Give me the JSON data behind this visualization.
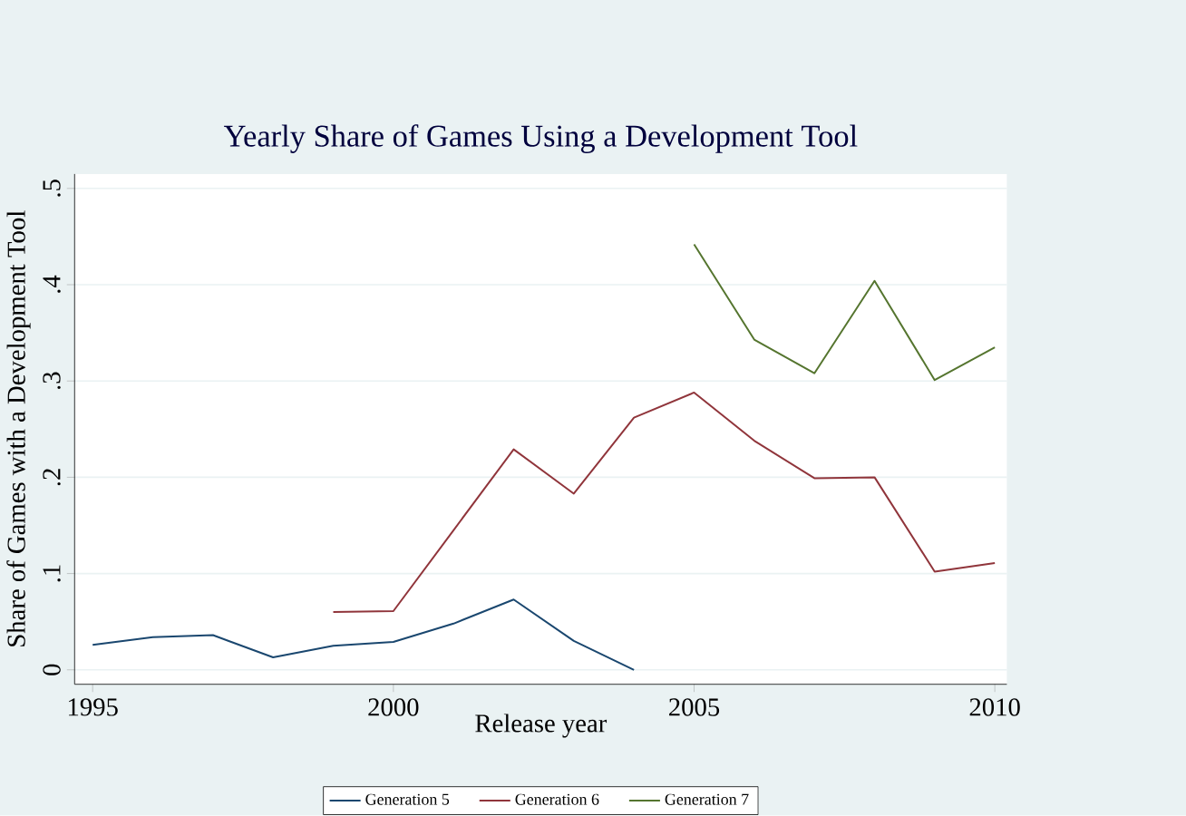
{
  "chart_data": {
    "type": "line",
    "title": "Yearly Share of Games Using a Development Tool",
    "xlabel": "Release year",
    "ylabel": "Share of Games with a Development Tool",
    "x": [
      1995,
      1996,
      1997,
      1998,
      1999,
      2000,
      2001,
      2002,
      2003,
      2004,
      2005,
      2006,
      2007,
      2008,
      2009,
      2010
    ],
    "series": [
      {
        "name": "Generation 5",
        "color": "#1a476f",
        "values": [
          0.026,
          0.034,
          0.036,
          0.013,
          0.025,
          0.029,
          0.048,
          0.073,
          0.03,
          0.0,
          null,
          null,
          null,
          null,
          null,
          null
        ]
      },
      {
        "name": "Generation 6",
        "color": "#90353b",
        "values": [
          null,
          null,
          null,
          null,
          0.06,
          0.061,
          0.145,
          0.229,
          0.183,
          0.262,
          0.288,
          0.238,
          0.199,
          0.2,
          0.102,
          0.111
        ]
      },
      {
        "name": "Generation 7",
        "color": "#55752f",
        "values": [
          null,
          null,
          null,
          null,
          null,
          null,
          null,
          null,
          null,
          null,
          0.442,
          0.343,
          0.308,
          0.404,
          0.301,
          0.335
        ]
      }
    ],
    "xlim": [
      1994.7,
      2010.2
    ],
    "ylim": [
      -0.015,
      0.515
    ],
    "xticks": [
      1995,
      2000,
      2005,
      2010
    ],
    "yticks": [
      {
        "value": 0,
        "label": "0"
      },
      {
        "value": 0.1,
        "label": ".1"
      },
      {
        "value": 0.2,
        "label": ".2"
      },
      {
        "value": 0.3,
        "label": ".3"
      },
      {
        "value": 0.4,
        "label": ".4"
      },
      {
        "value": 0.5,
        "label": ".5"
      }
    ],
    "grid": "y",
    "legend": "bottom",
    "line_style": "solid",
    "marker": "none"
  }
}
